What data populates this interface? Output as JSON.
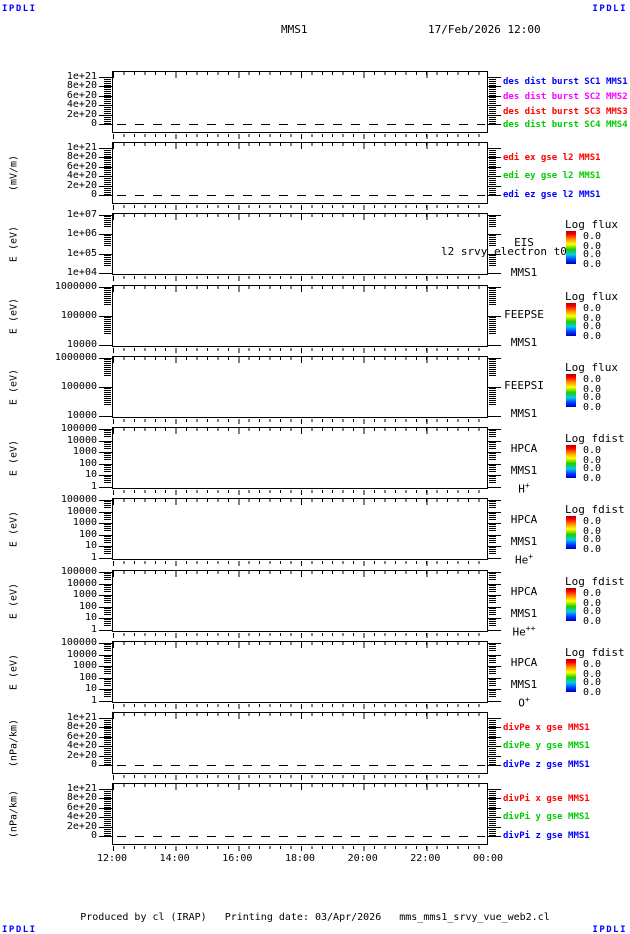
{
  "header": {
    "corner": "IPDLI",
    "title": "MMS1",
    "datetime": "17/Feb/2026 12:00"
  },
  "footer": {
    "produced": "Produced by cl (IRAP)",
    "printing": "Printing date: 03/Apr/2026",
    "script": "mms_mms1_srvy_vue_web2.cl",
    "corner": "IPDLI"
  },
  "chart_data": {
    "type": "multi-panel-time-series",
    "x_ticks": [
      "12:00",
      "14:00",
      "16:00",
      "18:00",
      "20:00",
      "22:00",
      "00:00"
    ],
    "x_range": [
      "12:00",
      "00:00"
    ],
    "note": "all panels empty of data; line panels show only a dashed zero baseline",
    "panels": [
      {
        "id": "des-dist-burst",
        "kind": "line",
        "unit": "",
        "yticks": [
          "1e+21",
          "8e+20",
          "6e+20",
          "4e+20",
          "2e+20",
          "0"
        ],
        "zero_dash": true,
        "values": [],
        "series": [
          {
            "label": "des dist burst SC1 MMS1",
            "color": "#0000ff"
          },
          {
            "label": "des dist burst SC2 MMS2",
            "color": "#ff00ff"
          },
          {
            "label": "des dist burst SC3 MMS3",
            "color": "#ff0000"
          },
          {
            "label": "des dist burst SC4 MMS4",
            "color": "#00cc00"
          }
        ]
      },
      {
        "id": "edi-e-gse",
        "kind": "line",
        "unit": "(mV/m)",
        "yticks": [
          "1e+21",
          "8e+20",
          "6e+20",
          "4e+20",
          "2e+20",
          "0"
        ],
        "zero_dash": true,
        "values": [],
        "series": [
          {
            "label": "edi ex gse l2 MMS1",
            "color": "#ff0000"
          },
          {
            "label": "edi ey gse l2 MMS1",
            "color": "#00cc00"
          },
          {
            "label": "edi ez gse l2 MMS1",
            "color": "#0000ff"
          }
        ]
      },
      {
        "id": "eis",
        "kind": "spectrogram",
        "unit": "E (eV)",
        "yticks": [
          "1e+07",
          "1e+06",
          "1e+05",
          "1e+04"
        ],
        "labels": [
          "EIS",
          "l2 srvy electron t0",
          "MMS1"
        ],
        "colorbar": {
          "title": "Log flux",
          "tick_values": [
            "0.0",
            "0.0",
            "0.0",
            "0.0"
          ]
        },
        "values": []
      },
      {
        "id": "feepse",
        "kind": "spectrogram",
        "unit": "E (eV)",
        "yticks": [
          "1000000",
          "100000",
          "10000"
        ],
        "labels": [
          "FEEPSE",
          "MMS1"
        ],
        "colorbar": {
          "title": "Log flux",
          "tick_values": [
            "0.0",
            "0.0",
            "0.0",
            "0.0"
          ]
        },
        "values": []
      },
      {
        "id": "feepsi",
        "kind": "spectrogram",
        "unit": "E (eV)",
        "yticks": [
          "1000000",
          "100000",
          "10000"
        ],
        "labels": [
          "FEEPSI",
          "MMS1"
        ],
        "colorbar": {
          "title": "Log flux",
          "tick_values": [
            "0.0",
            "0.0",
            "0.0",
            "0.0"
          ]
        },
        "values": []
      },
      {
        "id": "hpca-h",
        "kind": "spectrogram",
        "unit": "E (eV)",
        "yticks": [
          "100000",
          "10000",
          "1000",
          "100",
          "10",
          "1"
        ],
        "labels": [
          "HPCA",
          "MMS1",
          "H^+"
        ],
        "colorbar": {
          "title": "Log fdist",
          "tick_values": [
            "0.0",
            "0.0",
            "0.0",
            "0.0"
          ]
        },
        "values": []
      },
      {
        "id": "hpca-he",
        "kind": "spectrogram",
        "unit": "E (eV)",
        "yticks": [
          "100000",
          "10000",
          "1000",
          "100",
          "10",
          "1"
        ],
        "labels": [
          "HPCA",
          "MMS1",
          "He^+"
        ],
        "colorbar": {
          "title": "Log fdist",
          "tick_values": [
            "0.0",
            "0.0",
            "0.0",
            "0.0"
          ]
        },
        "values": []
      },
      {
        "id": "hpca-hepp",
        "kind": "spectrogram",
        "unit": "E (eV)",
        "yticks": [
          "100000",
          "10000",
          "1000",
          "100",
          "10",
          "1"
        ],
        "labels": [
          "HPCA",
          "MMS1",
          "He^++"
        ],
        "colorbar": {
          "title": "Log fdist",
          "tick_values": [
            "0.0",
            "0.0",
            "0.0",
            "0.0"
          ]
        },
        "values": []
      },
      {
        "id": "hpca-o",
        "kind": "spectrogram",
        "unit": "E (eV)",
        "yticks": [
          "100000",
          "10000",
          "1000",
          "100",
          "10",
          "1"
        ],
        "labels": [
          "HPCA",
          "MMS1",
          "O^+"
        ],
        "colorbar": {
          "title": "Log fdist",
          "tick_values": [
            "0.0",
            "0.0",
            "0.0",
            "0.0"
          ]
        },
        "values": []
      },
      {
        "id": "divpe",
        "kind": "line",
        "unit": "(nPa/km)",
        "yticks": [
          "1e+21",
          "8e+20",
          "6e+20",
          "4e+20",
          "2e+20",
          "0"
        ],
        "zero_dash": true,
        "values": [],
        "series": [
          {
            "label": "divPe x gse MMS1",
            "color": "#ff0000"
          },
          {
            "label": "divPe y gse MMS1",
            "color": "#00cc00"
          },
          {
            "label": "divPe z gse MMS1",
            "color": "#0000ff"
          }
        ]
      },
      {
        "id": "divpi",
        "kind": "line",
        "unit": "(nPa/km)",
        "yticks": [
          "1e+21",
          "8e+20",
          "6e+20",
          "4e+20",
          "2e+20",
          "0"
        ],
        "zero_dash": true,
        "values": [],
        "series": [
          {
            "label": "divPi x gse MMS1",
            "color": "#ff0000"
          },
          {
            "label": "divPi y gse MMS1",
            "color": "#00cc00"
          },
          {
            "label": "divPi z gse MMS1",
            "color": "#0000ff"
          }
        ]
      }
    ]
  }
}
